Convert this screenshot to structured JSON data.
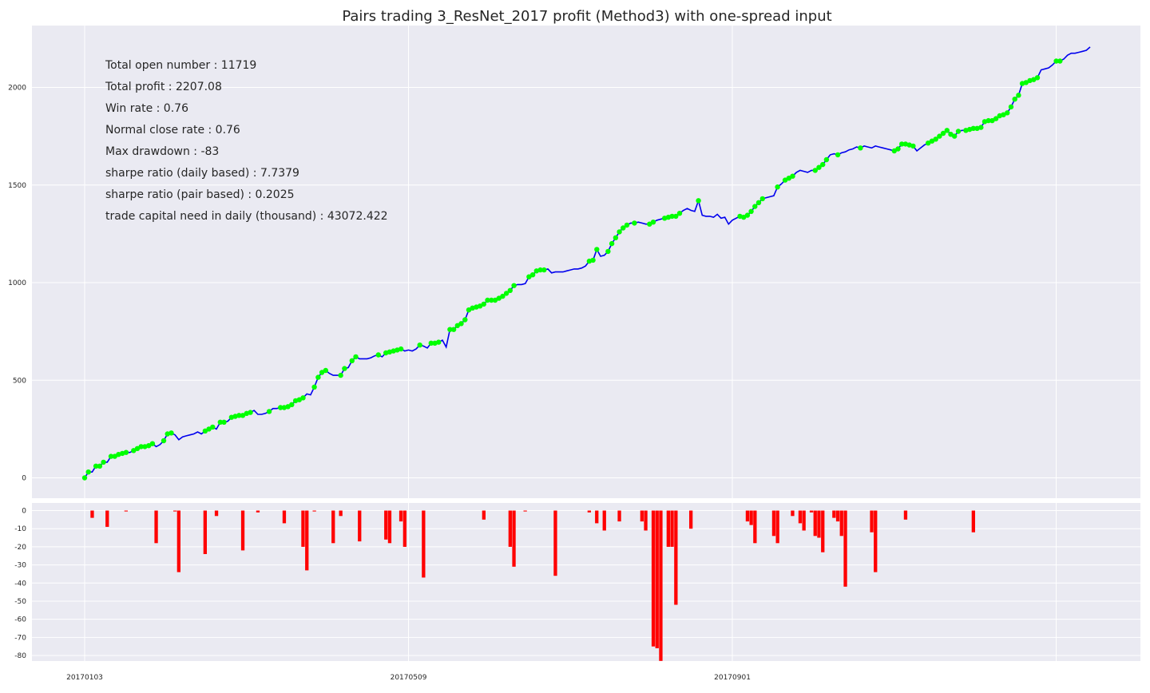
{
  "title": "Pairs trading 3_ResNet_2017 profit (Method3) with one-spread input",
  "stats": [
    "Total open number : 11719",
    "Total profit : 2207.08",
    "Win rate : 0.76",
    "Normal close rate : 0.76",
    "Max drawdown : -83",
    "sharpe ratio (daily based) : 7.7379",
    "sharpe ratio (pair based) : 0.2025",
    "trade capital need in daily (thousand) : 43072.422"
  ],
  "colors": {
    "background": "#eaeaf2",
    "grid": "#ffffff",
    "line": "#0000ee",
    "markers": "#00ff00",
    "drawdown": "#ff0000"
  },
  "chart_data": [
    {
      "type": "line",
      "title": "Pairs trading 3_ResNet_2017 profit (Method3) with one-spread input",
      "x_type": "trading_day_index",
      "x_tick_labels": [
        "20170103",
        "20170509",
        "20170901"
      ],
      "y_ticks": [
        0,
        500,
        1000,
        1500,
        2000
      ],
      "ylim": [
        -100,
        2310
      ],
      "grid": true,
      "series": [
        {
          "values": [
            0,
            30,
            30,
            60,
            60,
            80,
            80,
            110,
            110,
            120,
            125,
            130,
            130,
            140,
            150,
            160,
            160,
            165,
            175,
            160,
            170,
            190,
            225,
            230,
            220,
            195,
            210,
            215,
            220,
            225,
            235,
            225,
            240,
            250,
            260,
            250,
            285,
            285,
            290,
            310,
            315,
            320,
            320,
            330,
            335,
            345,
            325,
            325,
            330,
            340,
            355,
            355,
            360,
            360,
            365,
            375,
            395,
            400,
            410,
            430,
            425,
            465,
            515,
            540,
            550,
            535,
            525,
            525,
            525,
            560,
            565,
            600,
            620,
            610,
            610,
            610,
            615,
            625,
            630,
            620,
            640,
            645,
            650,
            655,
            660,
            650,
            655,
            650,
            660,
            680,
            675,
            665,
            690,
            690,
            695,
            705,
            670,
            760,
            760,
            780,
            790,
            810,
            860,
            870,
            875,
            880,
            890,
            910,
            910,
            910,
            920,
            930,
            945,
            960,
            985,
            990,
            990,
            995,
            1030,
            1040,
            1060,
            1065,
            1065,
            1070,
            1050,
            1055,
            1055,
            1055,
            1060,
            1065,
            1070,
            1070,
            1075,
            1085,
            1110,
            1115,
            1170,
            1135,
            1140,
            1160,
            1200,
            1230,
            1260,
            1280,
            1295,
            1305,
            1305,
            1310,
            1305,
            1300,
            1300,
            1310,
            1320,
            1325,
            1330,
            1335,
            1340,
            1340,
            1355,
            1370,
            1380,
            1370,
            1365,
            1420,
            1345,
            1340,
            1340,
            1335,
            1350,
            1330,
            1335,
            1300,
            1320,
            1330,
            1340,
            1335,
            1345,
            1365,
            1390,
            1410,
            1430,
            1435,
            1440,
            1445,
            1490,
            1505,
            1525,
            1535,
            1545,
            1565,
            1575,
            1570,
            1565,
            1575,
            1575,
            1590,
            1605,
            1630,
            1655,
            1660,
            1655,
            1665,
            1670,
            1680,
            1685,
            1695,
            1690,
            1700,
            1695,
            1690,
            1700,
            1695,
            1690,
            1685,
            1680,
            1675,
            1685,
            1710,
            1710,
            1705,
            1700,
            1675,
            1690,
            1705,
            1715,
            1725,
            1735,
            1750,
            1765,
            1780,
            1760,
            1750,
            1775,
            1780,
            1780,
            1785,
            1790,
            1790,
            1795,
            1825,
            1830,
            1830,
            1840,
            1855,
            1860,
            1870,
            1900,
            1940,
            1960,
            2020,
            2025,
            2035,
            2040,
            2050,
            2090,
            2095,
            2100,
            2115,
            2135,
            2135,
            2145,
            2165,
            2175,
            2175,
            2180,
            2185,
            2190,
            2207
          ],
          "markers": [
            0,
            1,
            3,
            4,
            5,
            7,
            8,
            9,
            10,
            11,
            13,
            14,
            15,
            16,
            17,
            18,
            21,
            22,
            23,
            32,
            33,
            34,
            36,
            37,
            39,
            40,
            41,
            42,
            43,
            44,
            49,
            52,
            53,
            54,
            55,
            56,
            57,
            58,
            61,
            62,
            63,
            64,
            68,
            69,
            71,
            72,
            78,
            80,
            81,
            82,
            83,
            84,
            89,
            92,
            93,
            94,
            97,
            98,
            99,
            100,
            101,
            102,
            103,
            104,
            105,
            106,
            107,
            108,
            109,
            110,
            111,
            112,
            113,
            114,
            118,
            119,
            120,
            121,
            122,
            134,
            135,
            136,
            139,
            140,
            141,
            142,
            143,
            144,
            146,
            150,
            151,
            154,
            155,
            156,
            157,
            158,
            163,
            174,
            175,
            176,
            177,
            178,
            179,
            180,
            184,
            186,
            187,
            188,
            194,
            195,
            196,
            197,
            200,
            206,
            215,
            216,
            217,
            218,
            219,
            220,
            224,
            225,
            226,
            227,
            228,
            229,
            230,
            231,
            232,
            234,
            235,
            236,
            237,
            238,
            239,
            240,
            241,
            242,
            243,
            244,
            245,
            246,
            247,
            248,
            249,
            250,
            251,
            252,
            253,
            258,
            259
          ]
        }
      ]
    },
    {
      "type": "bar",
      "title": "",
      "x_type": "trading_day_index",
      "x_tick_labels": [
        "20170103",
        "20170509",
        "20170901"
      ],
      "y_ticks": [
        0,
        -10,
        -20,
        -30,
        -40,
        -50,
        -60,
        -70,
        -80
      ],
      "ylim": [
        -85,
        0
      ],
      "grid": true,
      "bars": [
        [
          2,
          -4
        ],
        [
          6,
          -9
        ],
        [
          11,
          -0.5
        ],
        [
          19,
          -18
        ],
        [
          24,
          -0.5
        ],
        [
          25,
          -34
        ],
        [
          32,
          -24
        ],
        [
          35,
          -3
        ],
        [
          42,
          -22
        ],
        [
          46,
          -1
        ],
        [
          53,
          -7
        ],
        [
          58,
          -20
        ],
        [
          59,
          -33
        ],
        [
          61,
          -0.5
        ],
        [
          66,
          -18
        ],
        [
          68,
          -3
        ],
        [
          73,
          -17
        ],
        [
          80,
          -16
        ],
        [
          81,
          -18
        ],
        [
          84,
          -6
        ],
        [
          85,
          -20
        ],
        [
          90,
          -37
        ],
        [
          106,
          -5
        ],
        [
          113,
          -20
        ],
        [
          114,
          -31
        ],
        [
          117,
          -0.5
        ],
        [
          125,
          -36
        ],
        [
          134,
          -1
        ],
        [
          136,
          -7
        ],
        [
          138,
          -11
        ],
        [
          142,
          -6
        ],
        [
          148,
          -6
        ],
        [
          149,
          -11
        ],
        [
          151,
          -75
        ],
        [
          152,
          -76
        ],
        [
          153,
          -83
        ],
        [
          155,
          -20
        ],
        [
          156,
          -20
        ],
        [
          157,
          -52
        ],
        [
          161,
          -10
        ],
        [
          176,
          -6
        ],
        [
          177,
          -8
        ],
        [
          178,
          -18
        ],
        [
          183,
          -14
        ],
        [
          184,
          -18
        ],
        [
          188,
          -3
        ],
        [
          190,
          -7
        ],
        [
          191,
          -11
        ],
        [
          193,
          -1
        ],
        [
          194,
          -14
        ],
        [
          195,
          -15
        ],
        [
          196,
          -23
        ],
        [
          199,
          -4
        ],
        [
          200,
          -6
        ],
        [
          201,
          -14
        ],
        [
          202,
          -42
        ],
        [
          209,
          -12
        ],
        [
          210,
          -34
        ],
        [
          218,
          -5
        ],
        [
          236,
          -12
        ]
      ]
    }
  ]
}
